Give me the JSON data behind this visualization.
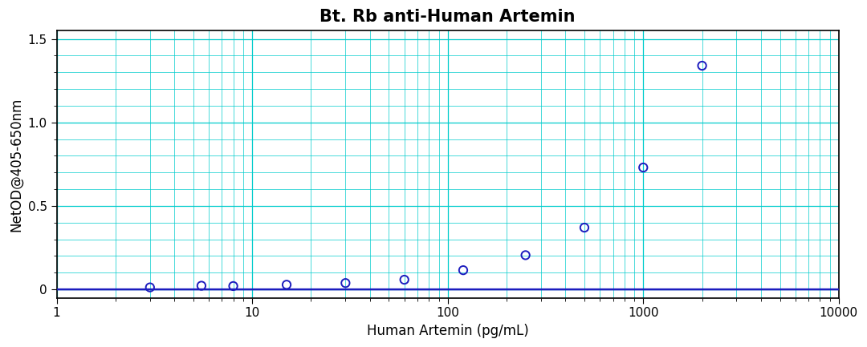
{
  "title": "Bt. Rb anti-Human Artemin",
  "xlabel": "Human Artemin (pg/mL)",
  "ylabel": "NetOD@405-650nm",
  "xlim": [
    1,
    10000
  ],
  "ylim": [
    -0.05,
    1.55
  ],
  "yticks": [
    0.0,
    0.5,
    1.0,
    1.5
  ],
  "ytick_labels": [
    "0",
    "0.5",
    "1.0",
    "1.5"
  ],
  "xticks": [
    1,
    10,
    100,
    1000,
    10000
  ],
  "xtick_labels": [
    "1",
    "10",
    "100",
    "1000",
    "10000"
  ],
  "data_x": [
    3.0,
    5.5,
    8.0,
    15.0,
    30.0,
    60.0,
    120.0,
    250.0,
    500.0,
    1000.0,
    2000.0
  ],
  "data_y": [
    0.012,
    0.022,
    0.02,
    0.028,
    0.038,
    0.058,
    0.115,
    0.205,
    0.37,
    0.73,
    1.34
  ],
  "curve_color": "#1C1CBE",
  "marker_color": "#1C1CBE",
  "grid_major_color": "#00CCCC",
  "grid_minor_color": "#00CCCC",
  "grid_major_lw": 0.9,
  "grid_minor_lw": 0.5,
  "bg_color": "#FFFFFF",
  "title_fontsize": 15,
  "label_fontsize": 12,
  "tick_fontsize": 11,
  "curve_lw": 1.8,
  "marker_size": 55,
  "marker_lw": 1.4
}
